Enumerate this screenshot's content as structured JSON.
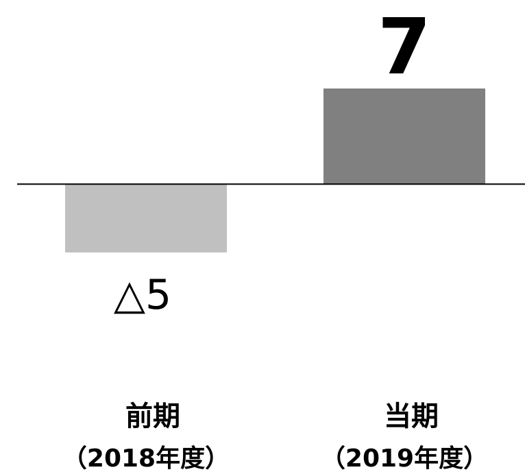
{
  "chart_data": {
    "type": "bar",
    "categories": [
      "前期",
      "当期"
    ],
    "category_periods": [
      "（2018年度）",
      "（2019年度）"
    ],
    "values": [
      -5,
      7
    ],
    "value_labels": [
      "△5",
      "7"
    ],
    "colors": [
      "#c0c0c0",
      "#808080"
    ],
    "ylim": [
      -5,
      7
    ]
  }
}
